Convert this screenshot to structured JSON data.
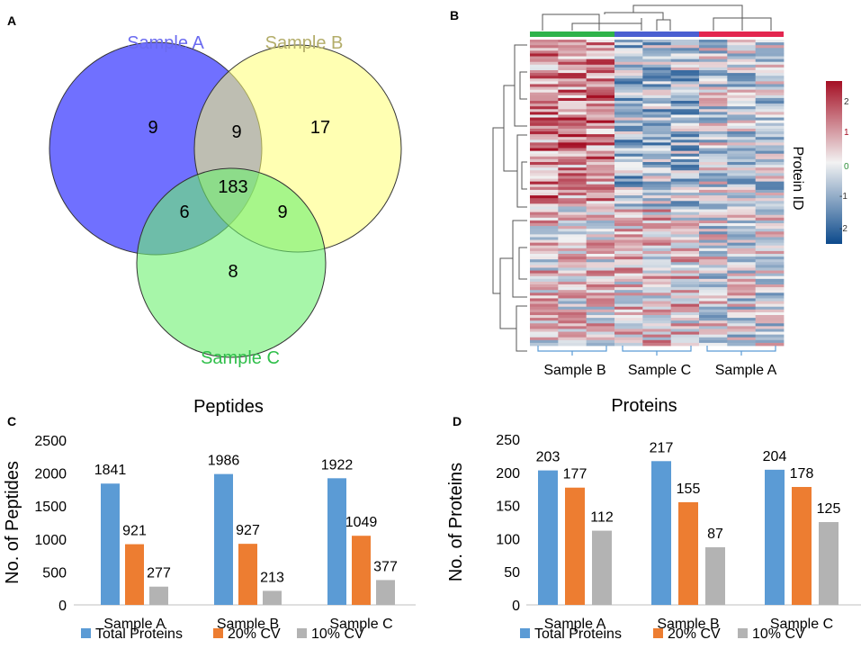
{
  "panels": {
    "a": "A",
    "b": "B",
    "c": "C",
    "d": "D"
  },
  "colors": {
    "sample_a": "#7070ff",
    "sample_b": "#ffff73",
    "sample_c": "#6cf070",
    "total": "#5b9bd5",
    "cv20": "#ed7d31",
    "cv10": "#b3b3b3",
    "heat_high": "#a50f24",
    "heat_mid": "#f2f2f2",
    "heat_low": "#0c4a8c",
    "bar_green": "#2fb34a",
    "bar_blue": "#4a5fd1",
    "bar_red": "#e3264f"
  },
  "chart_data": [
    {
      "type": "venn",
      "sets": [
        {
          "name": "Sample A",
          "only": 9
        },
        {
          "name": "Sample B",
          "only": 17
        },
        {
          "name": "Sample C",
          "only": 8
        }
      ],
      "intersections": {
        "AB": 9,
        "AC": 6,
        "BC": 9,
        "ABC": 183
      }
    },
    {
      "type": "heatmap",
      "columns": [
        "Sample B",
        "Sample C",
        "Sample A"
      ],
      "row_label": "Protein ID",
      "colorbar_ticks": [
        "2",
        "1",
        "0",
        "-1",
        "-2"
      ],
      "color_range": [
        -2.5,
        2.5
      ]
    },
    {
      "type": "bar",
      "title": "Peptides",
      "ylabel": "No. of Peptides",
      "categories": [
        "Sample A",
        "Sample B",
        "Sample C"
      ],
      "series": [
        {
          "name": "Total Proteins",
          "values": [
            1841,
            1986,
            1922
          ]
        },
        {
          "name": "20% CV",
          "values": [
            921,
            927,
            1049
          ]
        },
        {
          "name": "10% CV",
          "values": [
            277,
            213,
            377
          ]
        }
      ],
      "ylim": [
        0,
        2500
      ],
      "yticks": [
        0,
        500,
        1000,
        1500,
        2000,
        2500
      ]
    },
    {
      "type": "bar",
      "title": "Proteins",
      "ylabel": "No. of Proteins",
      "categories": [
        "Sample A",
        "Sample B",
        "Sample C"
      ],
      "series": [
        {
          "name": "Total Proteins",
          "values": [
            203,
            217,
            204
          ]
        },
        {
          "name": "20% CV",
          "values": [
            177,
            155,
            178
          ]
        },
        {
          "name": "10% CV",
          "values": [
            112,
            87,
            125
          ]
        }
      ],
      "ylim": [
        0,
        250
      ],
      "yticks": [
        0,
        50,
        100,
        150,
        200,
        250
      ]
    }
  ]
}
